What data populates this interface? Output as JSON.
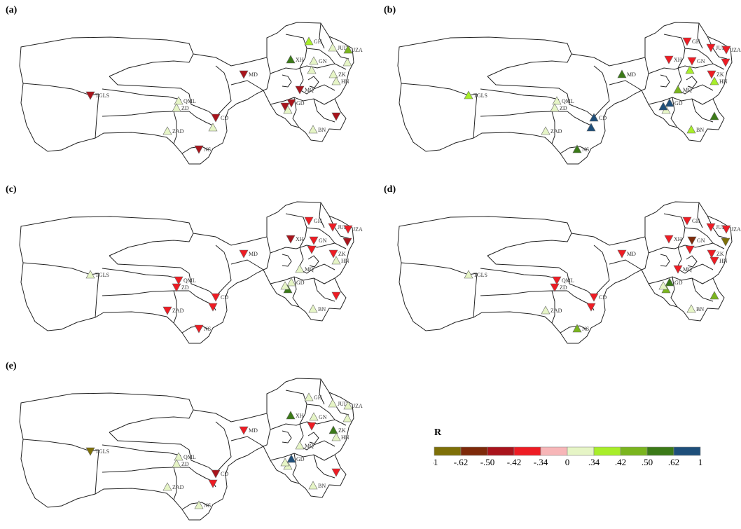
{
  "panels": [
    {
      "label": "(a)",
      "values": [
        0.38,
        0.2,
        0.45,
        0.2,
        0.55,
        0.2,
        0.2,
        0.2,
        0.2,
        -0.45,
        -0.45,
        0.2,
        -0.45,
        -0.45,
        -0.45,
        0.2,
        -0.45,
        0.2,
        0.2,
        0.2,
        -0.45,
        0.2,
        -0.45
      ]
    },
    {
      "label": "(b)",
      "values": [
        -0.36,
        -0.36,
        -0.36,
        -0.36,
        -0.36,
        -0.36,
        -0.36,
        0.36,
        0.36,
        0.55,
        0.46,
        0.36,
        0.75,
        0.55,
        0.75,
        0.75,
        0.36,
        0.2,
        0.2,
        0.2,
        0.55,
        0.2,
        0.75
      ]
    },
    {
      "label": "(c)",
      "values": [
        -0.36,
        -0.36,
        -0.36,
        -0.36,
        -0.45,
        -0.45,
        -0.36,
        0.2,
        0.2,
        -0.36,
        0.2,
        -0.36,
        0.2,
        -0.36,
        -0.36,
        -0.36,
        0.2,
        -0.36,
        -0.36,
        -0.36,
        -0.36,
        0.55,
        0.2
      ]
    },
    {
      "label": "(d)",
      "values": [
        -0.36,
        -0.36,
        -0.36,
        -0.56,
        -0.36,
        -0.7,
        -0.36,
        -0.36,
        0.2,
        -0.36,
        -0.36,
        -0.36,
        0.55,
        0.45,
        -0.36,
        -0.36,
        0.2,
        -0.36,
        -0.36,
        0.2,
        0.45,
        0.45,
        0.2
      ]
    },
    {
      "label": "(e)",
      "values": [
        0.2,
        0.2,
        0.2,
        0.2,
        0.55,
        0.2,
        0.55,
        0.2,
        0.2,
        -0.36,
        0.2,
        -0.36,
        0.75,
        -0.36,
        -0.45,
        -0.36,
        -0.8,
        0.2,
        0.2,
        0.2,
        0.2,
        0.2,
        0.2
      ]
    }
  ],
  "stations": [
    "GH",
    "JUD",
    "JZA",
    "GN",
    "XH",
    "TH",
    "ZK",
    "HN",
    "BN",
    "MD",
    "MQ",
    "RQ",
    "GD",
    "ZE",
    "CD",
    "YS",
    "TGLS",
    "QML",
    "ZD",
    "ZAD",
    "NS",
    "ZS",
    "DR"
  ],
  "labels_shown": [
    "GH",
    "JUD",
    "JZA",
    "GN",
    "XH",
    "ZK",
    "HN",
    "BN",
    "MD",
    "MQ",
    "GD",
    "CD",
    "TGLS",
    "QML",
    "ZD",
    "ZAD",
    "NS"
  ],
  "legend": {
    "title": "R",
    "ticks": [
      "-1",
      "-.62",
      "-.50",
      "-.42",
      "-.34",
      "0",
      ".34",
      ".42",
      ".50",
      ".62",
      "1"
    ],
    "colors": [
      "#7e7008",
      "#7e2a0a",
      "#a9141c",
      "#ee1c24",
      "#f7b6b8",
      "#e6f5c6",
      "#a8ee2a",
      "#7ab51e",
      "#3b7a18",
      "#1e4f7a"
    ]
  }
}
